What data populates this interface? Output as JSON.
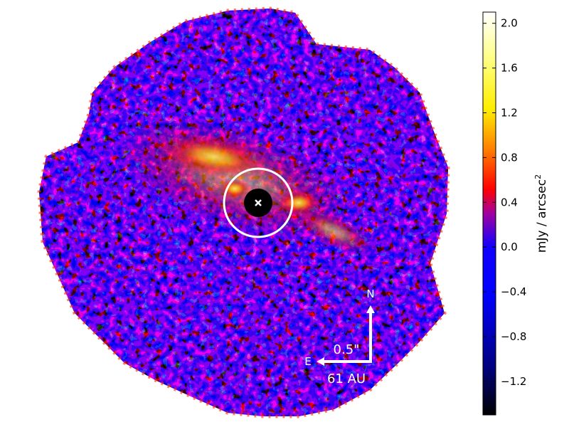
{
  "image": {
    "compass": {
      "north": "N",
      "east": "E"
    },
    "scale_bar": {
      "angular": "0.5\"",
      "physical": "61 AU"
    }
  },
  "colorbar": {
    "label_main": "mJy / arcsec",
    "label_sup": "2",
    "ticks": [
      "2.0",
      "1.6",
      "1.2",
      "0.8",
      "0.4",
      "0.0",
      "−0.4",
      "−0.8",
      "−1.2"
    ],
    "tick_values": [
      2.0,
      1.6,
      1.2,
      0.8,
      0.4,
      0.0,
      -0.4,
      -0.8,
      -1.2
    ],
    "range": [
      -1.5,
      2.1
    ],
    "colormap": [
      "#000000",
      "#000080",
      "#0000ff",
      "#8000c0",
      "#ff0000",
      "#ffa000",
      "#ffff00",
      "#ffffff"
    ]
  },
  "colors": {
    "background_noise": "#0a0adc",
    "disk_emission": "#ff2000",
    "bright_emission": "#ffe000",
    "mask": "#000000",
    "annotation": "#ffffff"
  }
}
